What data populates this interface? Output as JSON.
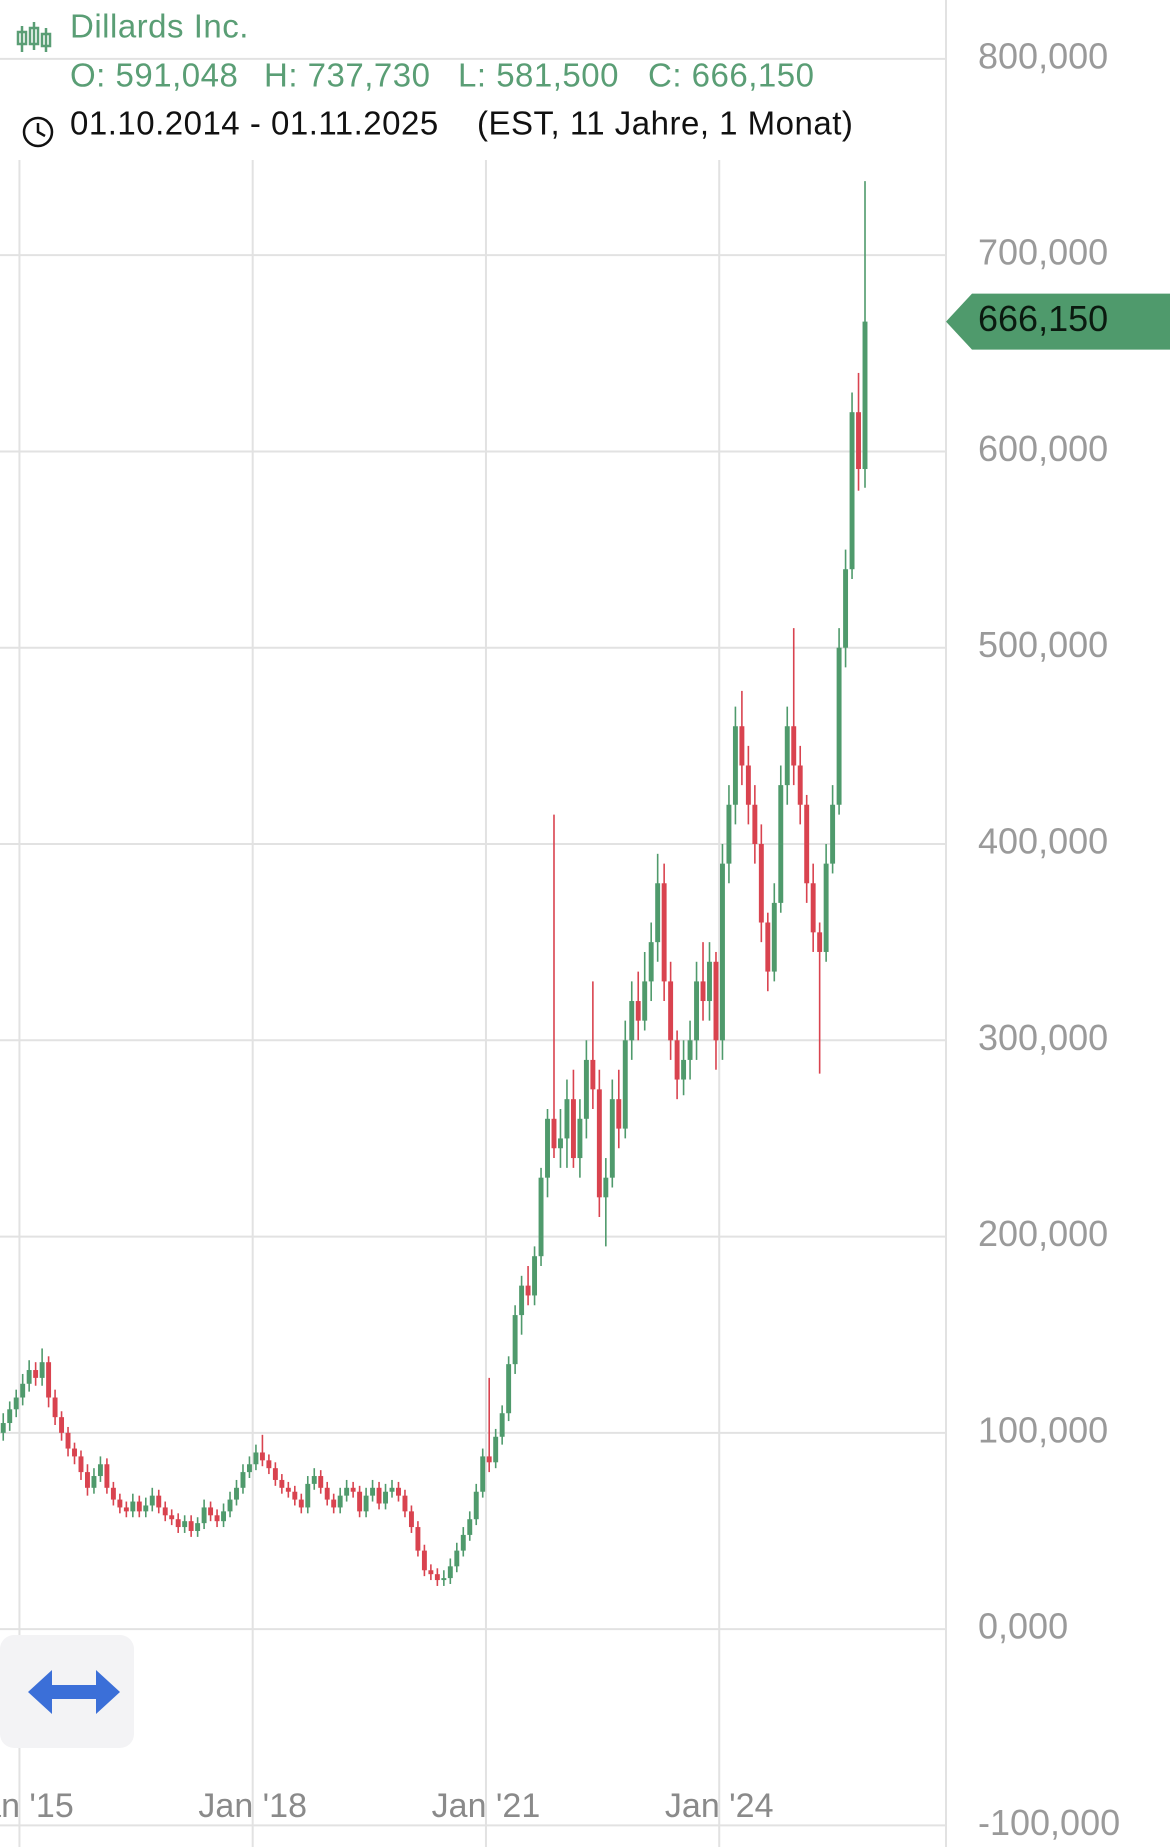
{
  "chart_data": {
    "type": "candlestick",
    "header": {
      "name": "Dillards Inc.",
      "open": "O: 591,048",
      "high": "H: 737,730",
      "low": "L: 581,500",
      "close": "C: 666,150",
      "range": "01.10.2014 - 01.11.2025",
      "period": "(EST, 11 Jahre, 1 Monat)"
    },
    "up_color": "#4f9a6c",
    "down_color": "#d9434f",
    "grid": true,
    "last_price": {
      "value": 666150,
      "label": "666,150"
    },
    "xlim": [
      "2014-10",
      "2026-12"
    ],
    "xticks": [
      {
        "value": "2015-01",
        "label": "Jan '15"
      },
      {
        "value": "2018-01",
        "label": "Jan '18"
      },
      {
        "value": "2021-01",
        "label": "Jan '21"
      },
      {
        "value": "2024-01",
        "label": "Jan '24"
      }
    ],
    "ylim": [
      -111000,
      830000
    ],
    "yticks": [
      {
        "value": -100000,
        "label": "-100,000"
      },
      {
        "value": 0,
        "label": "0,000"
      },
      {
        "value": 100000,
        "label": "100,000"
      },
      {
        "value": 200000,
        "label": "200,000"
      },
      {
        "value": 300000,
        "label": "300,000"
      },
      {
        "value": 400000,
        "label": "400,000"
      },
      {
        "value": 500000,
        "label": "500,000"
      },
      {
        "value": 600000,
        "label": "600,000"
      },
      {
        "value": 700000,
        "label": "700,000"
      },
      {
        "value": 800000,
        "label": "800,000"
      }
    ],
    "x": [
      "2014-10",
      "2014-11",
      "2014-12",
      "2015-01",
      "2015-02",
      "2015-03",
      "2015-04",
      "2015-05",
      "2015-06",
      "2015-07",
      "2015-08",
      "2015-09",
      "2015-10",
      "2015-11",
      "2015-12",
      "2016-01",
      "2016-02",
      "2016-03",
      "2016-04",
      "2016-05",
      "2016-06",
      "2016-07",
      "2016-08",
      "2016-09",
      "2016-10",
      "2016-11",
      "2016-12",
      "2017-01",
      "2017-02",
      "2017-03",
      "2017-04",
      "2017-05",
      "2017-06",
      "2017-07",
      "2017-08",
      "2017-09",
      "2017-10",
      "2017-11",
      "2017-12",
      "2018-01",
      "2018-02",
      "2018-03",
      "2018-04",
      "2018-05",
      "2018-06",
      "2018-07",
      "2018-08",
      "2018-09",
      "2018-10",
      "2018-11",
      "2018-12",
      "2019-01",
      "2019-02",
      "2019-03",
      "2019-04",
      "2019-05",
      "2019-06",
      "2019-07",
      "2019-08",
      "2019-09",
      "2019-10",
      "2019-11",
      "2019-12",
      "2020-01",
      "2020-02",
      "2020-03",
      "2020-04",
      "2020-05",
      "2020-06",
      "2020-07",
      "2020-08",
      "2020-09",
      "2020-10",
      "2020-11",
      "2020-12",
      "2021-01",
      "2021-02",
      "2021-03",
      "2021-04",
      "2021-05",
      "2021-06",
      "2021-07",
      "2021-08",
      "2021-09",
      "2021-10",
      "2021-11",
      "2021-12",
      "2022-01",
      "2022-02",
      "2022-03",
      "2022-04",
      "2022-05",
      "2022-06",
      "2022-07",
      "2022-08",
      "2022-09",
      "2022-10",
      "2022-11",
      "2022-12",
      "2023-01",
      "2023-02",
      "2023-03",
      "2023-04",
      "2023-05",
      "2023-06",
      "2023-07",
      "2023-08",
      "2023-09",
      "2023-10",
      "2023-11",
      "2023-12",
      "2024-01",
      "2024-02",
      "2024-03",
      "2024-04",
      "2024-05",
      "2024-06",
      "2024-07",
      "2024-08",
      "2024-09",
      "2024-10",
      "2024-11",
      "2024-12",
      "2025-01",
      "2025-02",
      "2025-03",
      "2025-04",
      "2025-05",
      "2025-06",
      "2025-07",
      "2025-08",
      "2025-09",
      "2025-10",
      "2025-11"
    ],
    "ohlc": [
      [
        100000,
        110000,
        96000,
        105000
      ],
      [
        105000,
        116000,
        101000,
        112000
      ],
      [
        112000,
        122000,
        108000,
        118000
      ],
      [
        118000,
        130000,
        114000,
        125000
      ],
      [
        125000,
        137000,
        121000,
        132000
      ],
      [
        132000,
        136000,
        124000,
        128000
      ],
      [
        128000,
        143000,
        124000,
        136000
      ],
      [
        136000,
        139000,
        113000,
        118000
      ],
      [
        118000,
        122000,
        104000,
        108000
      ],
      [
        108000,
        111000,
        96000,
        100000
      ],
      [
        100000,
        103000,
        88000,
        92000
      ],
      [
        92000,
        95000,
        84000,
        88000
      ],
      [
        88000,
        91000,
        76000,
        80000
      ],
      [
        80000,
        84000,
        68000,
        72000
      ],
      [
        72000,
        82000,
        69000,
        78000
      ],
      [
        78000,
        88000,
        75000,
        84000
      ],
      [
        84000,
        87000,
        69000,
        72000
      ],
      [
        72000,
        75000,
        63000,
        66000
      ],
      [
        66000,
        69000,
        59000,
        62000
      ],
      [
        62000,
        65000,
        57000,
        60000
      ],
      [
        60000,
        69000,
        57000,
        65000
      ],
      [
        65000,
        68000,
        57000,
        60000
      ],
      [
        60000,
        67000,
        57000,
        63000
      ],
      [
        63000,
        72000,
        60000,
        68000
      ],
      [
        68000,
        71000,
        59000,
        62000
      ],
      [
        62000,
        65000,
        55000,
        58000
      ],
      [
        58000,
        61000,
        53000,
        56000
      ],
      [
        56000,
        59000,
        49000,
        52000
      ],
      [
        52000,
        58000,
        49000,
        55000
      ],
      [
        55000,
        58000,
        47000,
        50000
      ],
      [
        50000,
        57000,
        47000,
        54000
      ],
      [
        54000,
        66000,
        51000,
        62000
      ],
      [
        62000,
        65000,
        55000,
        58000
      ],
      [
        58000,
        61000,
        52000,
        55000
      ],
      [
        55000,
        64000,
        52000,
        60000
      ],
      [
        60000,
        70000,
        57000,
        66000
      ],
      [
        66000,
        76000,
        63000,
        72000
      ],
      [
        72000,
        84000,
        69000,
        80000
      ],
      [
        80000,
        88000,
        77000,
        84000
      ],
      [
        84000,
        94000,
        81000,
        90000
      ],
      [
        90000,
        99000,
        83000,
        86000
      ],
      [
        86000,
        89000,
        79000,
        82000
      ],
      [
        82000,
        85000,
        73000,
        76000
      ],
      [
        76000,
        79000,
        69000,
        72000
      ],
      [
        72000,
        75000,
        67000,
        70000
      ],
      [
        70000,
        73000,
        63000,
        66000
      ],
      [
        66000,
        69000,
        59000,
        62000
      ],
      [
        62000,
        78000,
        59000,
        74000
      ],
      [
        74000,
        82000,
        71000,
        78000
      ],
      [
        78000,
        81000,
        69000,
        72000
      ],
      [
        72000,
        75000,
        63000,
        66000
      ],
      [
        66000,
        69000,
        59000,
        62000
      ],
      [
        62000,
        72000,
        59000,
        68000
      ],
      [
        68000,
        76000,
        65000,
        72000
      ],
      [
        72000,
        75000,
        67000,
        70000
      ],
      [
        70000,
        73000,
        57000,
        60000
      ],
      [
        60000,
        72000,
        57000,
        68000
      ],
      [
        68000,
        76000,
        65000,
        72000
      ],
      [
        72000,
        75000,
        61000,
        64000
      ],
      [
        64000,
        74000,
        61000,
        70000
      ],
      [
        70000,
        76000,
        67000,
        72000
      ],
      [
        72000,
        75000,
        65000,
        68000
      ],
      [
        68000,
        71000,
        57000,
        60000
      ],
      [
        60000,
        63000,
        49000,
        52000
      ],
      [
        52000,
        55000,
        37000,
        40000
      ],
      [
        40000,
        43000,
        27000,
        30000
      ],
      [
        30000,
        33000,
        25000,
        28000
      ],
      [
        28000,
        31000,
        22000,
        25000
      ],
      [
        25000,
        30000,
        22000,
        26000
      ],
      [
        26000,
        36000,
        23000,
        32000
      ],
      [
        32000,
        44000,
        29000,
        40000
      ],
      [
        40000,
        52000,
        37000,
        48000
      ],
      [
        48000,
        60000,
        45000,
        56000
      ],
      [
        56000,
        74000,
        53000,
        70000
      ],
      [
        70000,
        92000,
        67000,
        88000
      ],
      [
        88000,
        128000,
        80000,
        85000
      ],
      [
        85000,
        102000,
        82000,
        98000
      ],
      [
        98000,
        114000,
        94000,
        110000
      ],
      [
        110000,
        139000,
        106000,
        135000
      ],
      [
        135000,
        165000,
        130000,
        160000
      ],
      [
        160000,
        180000,
        150000,
        175000
      ],
      [
        175000,
        185000,
        165000,
        170000
      ],
      [
        170000,
        195000,
        165000,
        190000
      ],
      [
        190000,
        235000,
        185000,
        230000
      ],
      [
        230000,
        265000,
        220000,
        260000
      ],
      [
        260000,
        415000,
        240000,
        245000
      ],
      [
        245000,
        265000,
        235000,
        250000
      ],
      [
        250000,
        280000,
        235000,
        270000
      ],
      [
        270000,
        285000,
        235000,
        240000
      ],
      [
        240000,
        270000,
        230000,
        260000
      ],
      [
        260000,
        300000,
        250000,
        290000
      ],
      [
        290000,
        330000,
        265000,
        275000
      ],
      [
        275000,
        285000,
        210000,
        220000
      ],
      [
        220000,
        240000,
        195000,
        230000
      ],
      [
        230000,
        280000,
        225000,
        270000
      ],
      [
        270000,
        285000,
        245000,
        255000
      ],
      [
        255000,
        310000,
        250000,
        300000
      ],
      [
        300000,
        330000,
        290000,
        320000
      ],
      [
        320000,
        335000,
        300000,
        310000
      ],
      [
        310000,
        345000,
        305000,
        330000
      ],
      [
        330000,
        360000,
        320000,
        350000
      ],
      [
        350000,
        395000,
        340000,
        380000
      ],
      [
        380000,
        390000,
        320000,
        330000
      ],
      [
        330000,
        340000,
        290000,
        300000
      ],
      [
        300000,
        305000,
        270000,
        280000
      ],
      [
        280000,
        300000,
        272000,
        290000
      ],
      [
        290000,
        310000,
        280000,
        300000
      ],
      [
        300000,
        340000,
        290000,
        330000
      ],
      [
        330000,
        350000,
        310000,
        320000
      ],
      [
        320000,
        350000,
        310000,
        340000
      ],
      [
        340000,
        345000,
        285000,
        300000
      ],
      [
        300000,
        400000,
        290000,
        390000
      ],
      [
        390000,
        430000,
        380000,
        420000
      ],
      [
        420000,
        470000,
        410000,
        460000
      ],
      [
        460000,
        478000,
        430000,
        440000
      ],
      [
        440000,
        450000,
        410000,
        420000
      ],
      [
        420000,
        430000,
        390000,
        400000
      ],
      [
        400000,
        410000,
        350000,
        360000
      ],
      [
        360000,
        365000,
        325000,
        335000
      ],
      [
        335000,
        380000,
        330000,
        370000
      ],
      [
        370000,
        440000,
        365000,
        430000
      ],
      [
        430000,
        470000,
        420000,
        460000
      ],
      [
        460000,
        510000,
        430000,
        440000
      ],
      [
        440000,
        450000,
        410000,
        420000
      ],
      [
        420000,
        425000,
        370000,
        380000
      ],
      [
        380000,
        390000,
        345000,
        355000
      ],
      [
        355000,
        360000,
        283000,
        345000
      ],
      [
        345000,
        400000,
        340000,
        390000
      ],
      [
        390000,
        430000,
        385000,
        420000
      ],
      [
        420000,
        510000,
        415000,
        500000
      ],
      [
        500000,
        550000,
        490000,
        540000
      ],
      [
        540000,
        630000,
        535000,
        620000
      ],
      [
        620000,
        640000,
        580000,
        591048
      ],
      [
        591048,
        737730,
        581500,
        666150
      ]
    ]
  }
}
